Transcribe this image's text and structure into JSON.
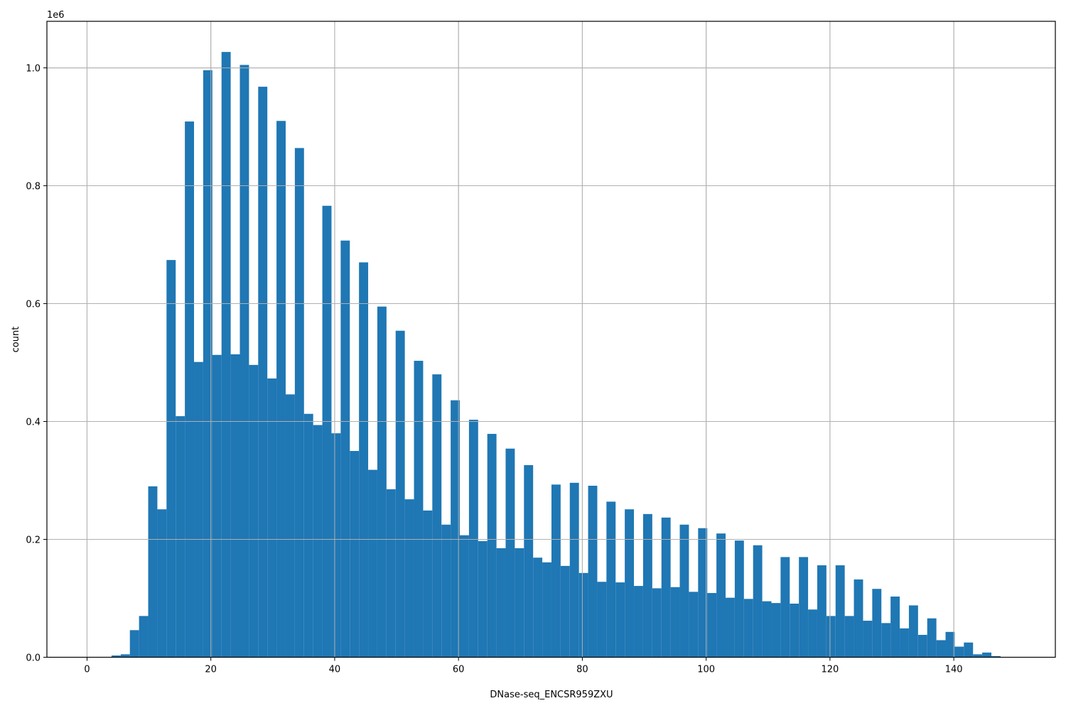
{
  "figure": {
    "background": "#ffffff",
    "bar_color": "#1f77b4",
    "grid_color": "#b0b0b0"
  },
  "chart_data": {
    "type": "bar",
    "subtype": "histogram",
    "title": "",
    "xlabel": "DNase-seq_ENCSR959ZXU",
    "ylabel": "count",
    "y_offset_label": "1e6",
    "y_scale": 1000000,
    "xlim": [
      -6.48,
      156.4
    ],
    "ylim": [
      0,
      1.079
    ],
    "grid": true,
    "legend": null,
    "x_ticks": [
      0,
      20,
      40,
      60,
      80,
      100,
      120,
      140
    ],
    "x_tick_labels": [
      "0",
      "20",
      "40",
      "60",
      "80",
      "100",
      "120",
      "140"
    ],
    "y_ticks": [
      0.0,
      0.2,
      0.4,
      0.6,
      0.8,
      1.0
    ],
    "y_tick_labels": [
      "0.0",
      "0.2",
      "0.4",
      "0.6",
      "0.8",
      "1.0"
    ],
    "bin_start": 3.96,
    "bin_width": 1.4803,
    "values_units": "millions (x1e6)",
    "values": [
      0.003,
      0.005,
      0.046,
      0.07,
      0.29,
      0.251,
      0.674,
      0.409,
      0.909,
      0.501,
      0.996,
      0.513,
      1.027,
      0.514,
      1.005,
      0.496,
      0.968,
      0.473,
      0.91,
      0.446,
      0.864,
      0.413,
      0.394,
      0.766,
      0.38,
      0.707,
      0.35,
      0.67,
      0.318,
      0.595,
      0.285,
      0.554,
      0.268,
      0.503,
      0.249,
      0.48,
      0.225,
      0.436,
      0.207,
      0.403,
      0.197,
      0.379,
      0.185,
      0.354,
      0.185,
      0.326,
      0.169,
      0.161,
      0.293,
      0.155,
      0.296,
      0.143,
      0.291,
      0.128,
      0.264,
      0.127,
      0.251,
      0.121,
      0.243,
      0.117,
      0.237,
      0.119,
      0.225,
      0.111,
      0.219,
      0.109,
      0.21,
      0.101,
      0.198,
      0.099,
      0.19,
      0.095,
      0.092,
      0.17,
      0.091,
      0.17,
      0.081,
      0.156,
      0.07,
      0.156,
      0.07,
      0.132,
      0.062,
      0.116,
      0.058,
      0.103,
      0.049,
      0.088,
      0.038,
      0.066,
      0.029,
      0.043,
      0.018,
      0.025,
      0.005,
      0.008,
      0.002
    ]
  }
}
